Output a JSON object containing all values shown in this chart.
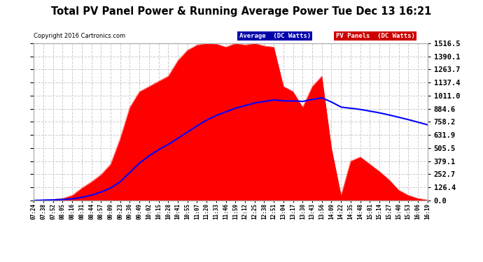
{
  "title": "Total PV Panel Power & Running Average Power Tue Dec 13 16:21",
  "copyright": "Copyright 2016 Cartronics.com",
  "legend_avg": "Average  (DC Watts)",
  "legend_pv": "PV Panels  (DC Watts)",
  "ymin": 0.0,
  "ymax": 1516.5,
  "yticks": [
    0.0,
    126.4,
    252.7,
    379.1,
    505.5,
    631.9,
    758.2,
    884.6,
    1011.0,
    1137.4,
    1263.7,
    1390.1,
    1516.5
  ],
  "background_color": "#ffffff",
  "grid_color": "#cccccc",
  "red_color": "#ff0000",
  "blue_color": "#0000ff",
  "outer_bg": "#ffffff",
  "xtick_labels": [
    "07:24",
    "07:38",
    "07:52",
    "08:05",
    "08:16",
    "08:31",
    "08:44",
    "08:57",
    "09:09",
    "09:23",
    "09:36",
    "09:49",
    "10:02",
    "10:15",
    "10:28",
    "10:41",
    "10:55",
    "11:07",
    "11:20",
    "11:33",
    "11:46",
    "11:59",
    "12:12",
    "12:25",
    "12:38",
    "12:51",
    "13:04",
    "13:17",
    "13:30",
    "13:43",
    "13:56",
    "14:09",
    "14:22",
    "14:35",
    "14:48",
    "15:01",
    "15:14",
    "15:27",
    "15:40",
    "15:53",
    "16:06",
    "16:19"
  ],
  "pv_power": [
    0,
    5,
    10,
    20,
    50,
    120,
    180,
    250,
    350,
    600,
    900,
    1050,
    1100,
    1150,
    1200,
    1350,
    1450,
    1500,
    1516,
    1510,
    1480,
    1516,
    1500,
    1516,
    1490,
    1480,
    1100,
    1050,
    900,
    1100,
    1200,
    505,
    50,
    380,
    420,
    350,
    280,
    200,
    100,
    50,
    20,
    5
  ],
  "avg_power": [
    0,
    3,
    5,
    9,
    15,
    30,
    50,
    80,
    120,
    180,
    270,
    360,
    430,
    490,
    540,
    600,
    660,
    720,
    775,
    820,
    855,
    890,
    915,
    940,
    955,
    970,
    960,
    960,
    955,
    975,
    990,
    950,
    900,
    890,
    878,
    862,
    845,
    825,
    802,
    780,
    755,
    730
  ]
}
